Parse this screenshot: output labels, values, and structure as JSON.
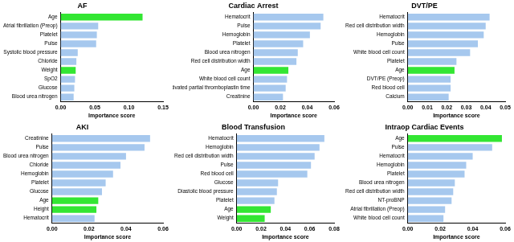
{
  "chart_data": [
    {
      "type": "bar",
      "title": "AF",
      "orientation": "horizontal",
      "grid": false,
      "categories": [
        "Age",
        "Atrial fibrillation (Preop)",
        "Platelet",
        "Pulse",
        "Systolic blood pressure",
        "Chloride",
        "Weight",
        "SpO2",
        "Glucose",
        "Blood urea nitrogen"
      ],
      "values": [
        0.12,
        0.055,
        0.053,
        0.052,
        0.025,
        0.023,
        0.022,
        0.021,
        0.02,
        0.019
      ],
      "colors": [
        "#33e633",
        "#a6c8ee",
        "#a6c8ee",
        "#a6c8ee",
        "#a6c8ee",
        "#a6c8ee",
        "#33e633",
        "#a6c8ee",
        "#a6c8ee",
        "#a6c8ee"
      ],
      "xlim": [
        0,
        0.15
      ],
      "xticks": [
        {
          "value": 0,
          "label": "0.00"
        },
        {
          "value": 0.05,
          "label": "0.05"
        },
        {
          "value": 0.1,
          "label": "0.10"
        },
        {
          "value": 0.15,
          "label": "0.15"
        }
      ],
      "x_label": "Importance score"
    },
    {
      "type": "bar",
      "title": "Cardiac Arrest",
      "orientation": "horizontal",
      "grid": false,
      "categories": [
        "Hematocrit",
        "Pulse",
        "Hemoglobin",
        "Platelet",
        "Blood urea nitrogen",
        "Red cell distribution width",
        "Age",
        "White blood cell count",
        "Activated partial thromboplastin time",
        "Creatinine"
      ],
      "values": [
        0.052,
        0.05,
        0.042,
        0.037,
        0.033,
        0.032,
        0.026,
        0.025,
        0.024,
        0.022
      ],
      "colors": [
        "#a6c8ee",
        "#a6c8ee",
        "#a6c8ee",
        "#a6c8ee",
        "#a6c8ee",
        "#a6c8ee",
        "#33e633",
        "#a6c8ee",
        "#a6c8ee",
        "#a6c8ee"
      ],
      "xlim": [
        0,
        0.06
      ],
      "xticks": [
        {
          "value": 0,
          "label": "0.00"
        },
        {
          "value": 0.02,
          "label": "0.02"
        },
        {
          "value": 0.04,
          "label": "0.04"
        },
        {
          "value": 0.06,
          "label": "0.06"
        }
      ],
      "x_label": "Importance score"
    },
    {
      "type": "bar",
      "title": "DVT/PE",
      "orientation": "horizontal",
      "grid": false,
      "categories": [
        "Hematocrit",
        "Red cell distribution width",
        "Hemoglobin",
        "Pulse",
        "White blood cell count",
        "Platelet",
        "Age",
        "DVT/PE (Preop)",
        "Red blood cell",
        "Calcium"
      ],
      "values": [
        0.042,
        0.04,
        0.039,
        0.036,
        0.032,
        0.025,
        0.024,
        0.022,
        0.022,
        0.021
      ],
      "colors": [
        "#a6c8ee",
        "#a6c8ee",
        "#a6c8ee",
        "#a6c8ee",
        "#a6c8ee",
        "#a6c8ee",
        "#33e633",
        "#a6c8ee",
        "#a6c8ee",
        "#a6c8ee"
      ],
      "xlim": [
        0,
        0.05
      ],
      "xticks": [
        {
          "value": 0,
          "label": "0.00"
        },
        {
          "value": 0.01,
          "label": "0.01"
        },
        {
          "value": 0.02,
          "label": "0.02"
        },
        {
          "value": 0.03,
          "label": "0.03"
        },
        {
          "value": 0.04,
          "label": "0.04"
        },
        {
          "value": 0.05,
          "label": "0.05"
        }
      ],
      "x_label": "Importance score"
    },
    {
      "type": "bar",
      "title": "AKI",
      "orientation": "horizontal",
      "grid": false,
      "categories": [
        "Creatinine",
        "Pulse",
        "Blood urea nitrogen",
        "Chloride",
        "Hemoglobin",
        "Platelet",
        "Glucose",
        "Age",
        "Height",
        "Hematocrit"
      ],
      "values": [
        0.053,
        0.05,
        0.04,
        0.037,
        0.033,
        0.029,
        0.027,
        0.025,
        0.024,
        0.023
      ],
      "colors": [
        "#a6c8ee",
        "#a6c8ee",
        "#a6c8ee",
        "#a6c8ee",
        "#a6c8ee",
        "#a6c8ee",
        "#a6c8ee",
        "#33e633",
        "#33e633",
        "#a6c8ee"
      ],
      "xlim": [
        0,
        0.06
      ],
      "xticks": [
        {
          "value": 0,
          "label": "0.00"
        },
        {
          "value": 0.02,
          "label": "0.02"
        },
        {
          "value": 0.04,
          "label": "0.04"
        },
        {
          "value": 0.06,
          "label": "0.06"
        }
      ],
      "x_label": "Importance score"
    },
    {
      "type": "bar",
      "title": "Blood Transfusion",
      "orientation": "horizontal",
      "grid": false,
      "categories": [
        "Hematocrit",
        "Hemoglobin",
        "Red cell distribution width",
        "Pulse",
        "Red blood cell",
        "Glucose",
        "Diastolic blood pressure",
        "Platelet",
        "Age",
        "Weight"
      ],
      "values": [
        0.072,
        0.068,
        0.064,
        0.061,
        0.058,
        0.034,
        0.033,
        0.031,
        0.028,
        0.023
      ],
      "colors": [
        "#a6c8ee",
        "#a6c8ee",
        "#a6c8ee",
        "#a6c8ee",
        "#a6c8ee",
        "#a6c8ee",
        "#a6c8ee",
        "#a6c8ee",
        "#33e633",
        "#33e633"
      ],
      "xlim": [
        0,
        0.08
      ],
      "xticks": [
        {
          "value": 0,
          "label": "0.00"
        },
        {
          "value": 0.02,
          "label": "0.02"
        },
        {
          "value": 0.04,
          "label": "0.04"
        },
        {
          "value": 0.06,
          "label": "0.06"
        },
        {
          "value": 0.08,
          "label": "0.08"
        }
      ],
      "x_label": "Importance score"
    },
    {
      "type": "bar",
      "title": "Intraop Cardiac Events",
      "orientation": "horizontal",
      "grid": false,
      "categories": [
        "Age",
        "Pulse",
        "Hematocrit",
        "Hemoglobin",
        "Platelet",
        "Blood urea nitrogen",
        "Red cell distribution width",
        "NT-proBNP",
        "Atrial fibrillation (Preop)",
        "White blood cell count"
      ],
      "values": [
        0.058,
        0.052,
        0.04,
        0.036,
        0.035,
        0.029,
        0.028,
        0.027,
        0.023,
        0.022
      ],
      "colors": [
        "#33e633",
        "#a6c8ee",
        "#a6c8ee",
        "#a6c8ee",
        "#a6c8ee",
        "#a6c8ee",
        "#a6c8ee",
        "#a6c8ee",
        "#a6c8ee",
        "#a6c8ee"
      ],
      "xlim": [
        0,
        0.06
      ],
      "xticks": [
        {
          "value": 0,
          "label": "0.00"
        },
        {
          "value": 0.02,
          "label": "0.02"
        },
        {
          "value": 0.04,
          "label": "0.04"
        },
        {
          "value": 0.06,
          "label": "0.06"
        }
      ],
      "x_label": "Importance score"
    }
  ]
}
